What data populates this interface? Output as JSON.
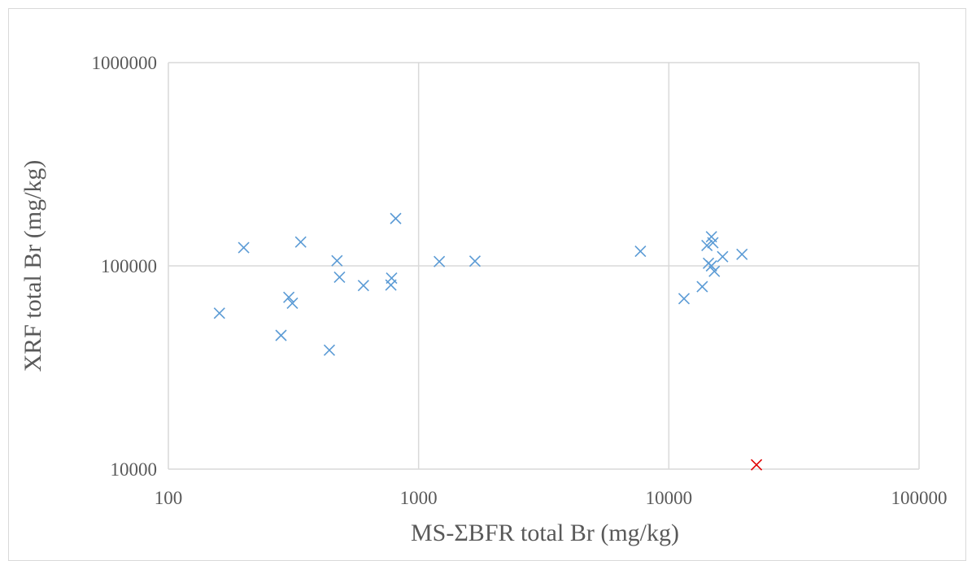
{
  "chart_data": {
    "type": "scatter",
    "title": "",
    "xlabel": "MS-ΣBFR total Br (mg/kg)",
    "ylabel": "XRF total Br (mg/kg)",
    "x_scale": "log",
    "y_scale": "log",
    "xlim": [
      100,
      100000
    ],
    "ylim": [
      10000,
      1000000
    ],
    "x_ticks": [
      100,
      1000,
      10000,
      100000
    ],
    "x_tick_labels": [
      "100",
      "1000",
      "10000",
      "100000"
    ],
    "y_ticks": [
      10000,
      100000,
      1000000
    ],
    "y_tick_labels": [
      "10000",
      "100000",
      "1000000"
    ],
    "grid": true,
    "legend": "none",
    "marker": "x",
    "colors": {
      "primary": "#5b9bd5",
      "outlier": "#e00000",
      "grid": "#d9d9d9",
      "text": "#595959"
    },
    "series": [
      {
        "color": "#5b9bd5",
        "points": [
          {
            "x": 160,
            "y": 58500
          },
          {
            "x": 200,
            "y": 123000
          },
          {
            "x": 282,
            "y": 45500
          },
          {
            "x": 303,
            "y": 70000
          },
          {
            "x": 313,
            "y": 65500
          },
          {
            "x": 338,
            "y": 131000
          },
          {
            "x": 440,
            "y": 38500
          },
          {
            "x": 472,
            "y": 106000
          },
          {
            "x": 483,
            "y": 88000
          },
          {
            "x": 602,
            "y": 80000
          },
          {
            "x": 775,
            "y": 80500
          },
          {
            "x": 780,
            "y": 87000
          },
          {
            "x": 810,
            "y": 171000
          },
          {
            "x": 1210,
            "y": 105000
          },
          {
            "x": 1680,
            "y": 105500
          },
          {
            "x": 7700,
            "y": 118000
          },
          {
            "x": 11500,
            "y": 69000
          },
          {
            "x": 13600,
            "y": 79000
          },
          {
            "x": 14200,
            "y": 126000
          },
          {
            "x": 14400,
            "y": 103000
          },
          {
            "x": 14800,
            "y": 139000
          },
          {
            "x": 14800,
            "y": 100000
          },
          {
            "x": 15000,
            "y": 130000
          },
          {
            "x": 15200,
            "y": 94000
          },
          {
            "x": 16400,
            "y": 111000
          },
          {
            "x": 19600,
            "y": 114000
          }
        ]
      },
      {
        "color": "#e00000",
        "points": [
          {
            "x": 22400,
            "y": 10500
          }
        ]
      }
    ]
  }
}
